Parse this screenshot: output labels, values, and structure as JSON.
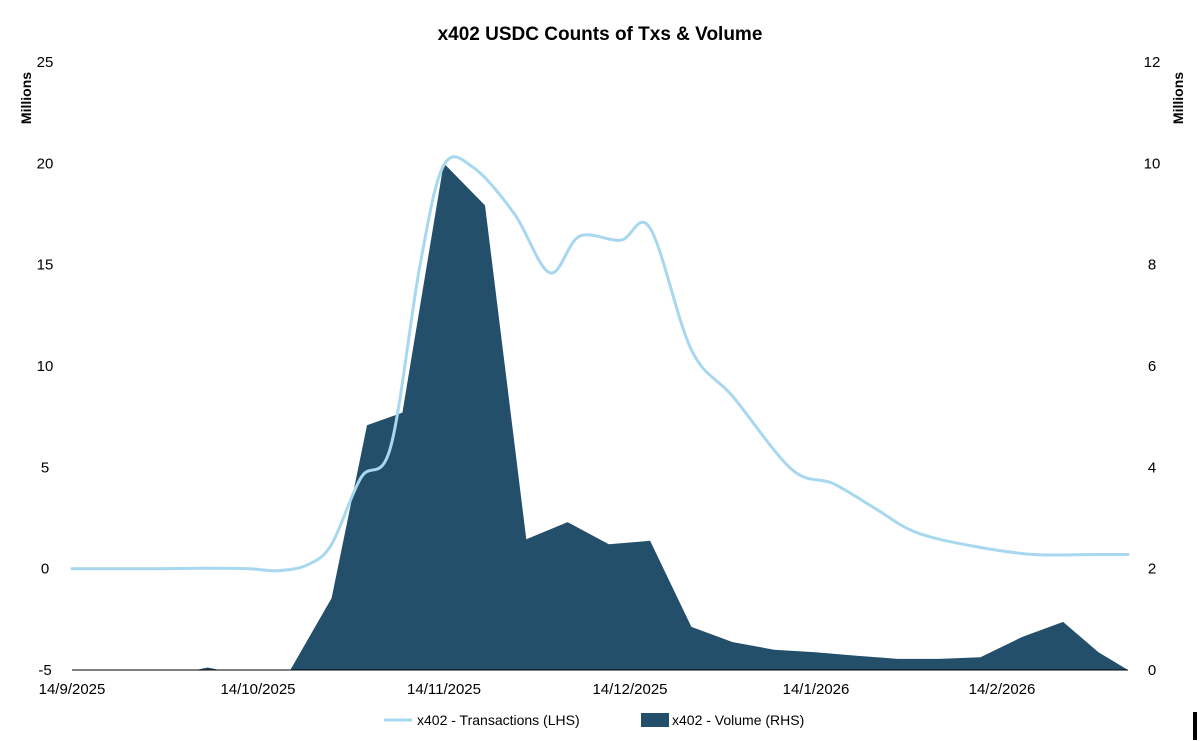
{
  "chart_data": {
    "type": "area+line",
    "title": "x402 USDC Counts of Txs & Volume",
    "left_axis": {
      "unit_label": "Millions",
      "min": -5,
      "max": 25,
      "ticks": [
        -5,
        0,
        5,
        10,
        15,
        20,
        25
      ]
    },
    "right_axis": {
      "unit_label": "Millions",
      "min": 0,
      "max": 12,
      "ticks": [
        0,
        2,
        4,
        6,
        8,
        10,
        12
      ]
    },
    "x_tick_labels": [
      "14/9/2025",
      "14/10/2025",
      "14/11/2025",
      "14/12/2025",
      "14/1/2026",
      "14/2/2026"
    ],
    "x_start": "2025-09-14",
    "x_end": "2026-03-12",
    "series": [
      {
        "name": "x402 - Transactions (LHS)",
        "type": "line",
        "axis": "left",
        "color": "#a8d8ef",
        "points": [
          [
            "2025-09-14",
            0.0
          ],
          [
            "2025-09-28",
            0.0
          ],
          [
            "2025-10-07",
            0.02
          ],
          [
            "2025-10-14",
            0.0
          ],
          [
            "2025-10-19",
            -0.1
          ],
          [
            "2025-10-24",
            0.2
          ],
          [
            "2025-10-28",
            1.2
          ],
          [
            "2025-11-02",
            4.5
          ],
          [
            "2025-11-07",
            6.0
          ],
          [
            "2025-11-12",
            15.0
          ],
          [
            "2025-11-16",
            19.9
          ],
          [
            "2025-11-21",
            19.8
          ],
          [
            "2025-11-28",
            17.5
          ],
          [
            "2025-12-04",
            14.6
          ],
          [
            "2025-12-09",
            16.4
          ],
          [
            "2025-12-16",
            16.2
          ],
          [
            "2025-12-21",
            16.8
          ],
          [
            "2025-12-28",
            10.8
          ],
          [
            "2026-01-04",
            8.5
          ],
          [
            "2026-01-14",
            4.9
          ],
          [
            "2026-01-21",
            4.2
          ],
          [
            "2026-01-28",
            3.0
          ],
          [
            "2026-02-04",
            1.8
          ],
          [
            "2026-02-14",
            1.1
          ],
          [
            "2026-02-24",
            0.7
          ],
          [
            "2026-03-06",
            0.7
          ],
          [
            "2026-03-12",
            0.7
          ]
        ]
      },
      {
        "name": "x402 - Volume (RHS)",
        "type": "area",
        "axis": "right",
        "color": "#234f6a",
        "points": [
          [
            "2025-09-14",
            0.0
          ],
          [
            "2025-10-05",
            0.0
          ],
          [
            "2025-10-07",
            0.05
          ],
          [
            "2025-10-09",
            0.0
          ],
          [
            "2025-10-21",
            0.0
          ],
          [
            "2025-10-28",
            1.42
          ],
          [
            "2025-11-03",
            4.83
          ],
          [
            "2025-11-09",
            5.08
          ],
          [
            "2025-11-16",
            10.0
          ],
          [
            "2025-11-23",
            9.17
          ],
          [
            "2025-11-30",
            2.58
          ],
          [
            "2025-12-07",
            2.92
          ],
          [
            "2025-12-14",
            2.48
          ],
          [
            "2025-12-21",
            2.55
          ],
          [
            "2025-12-28",
            0.85
          ],
          [
            "2026-01-04",
            0.55
          ],
          [
            "2026-01-11",
            0.4
          ],
          [
            "2026-01-18",
            0.35
          ],
          [
            "2026-01-25",
            0.28
          ],
          [
            "2026-02-01",
            0.22
          ],
          [
            "2026-02-08",
            0.22
          ],
          [
            "2026-02-15",
            0.25
          ],
          [
            "2026-02-22",
            0.65
          ],
          [
            "2026-03-01",
            0.95
          ],
          [
            "2026-03-07",
            0.35
          ],
          [
            "2026-03-12",
            0.0
          ]
        ]
      }
    ],
    "legend": {
      "position": "bottom"
    },
    "grid": false
  }
}
